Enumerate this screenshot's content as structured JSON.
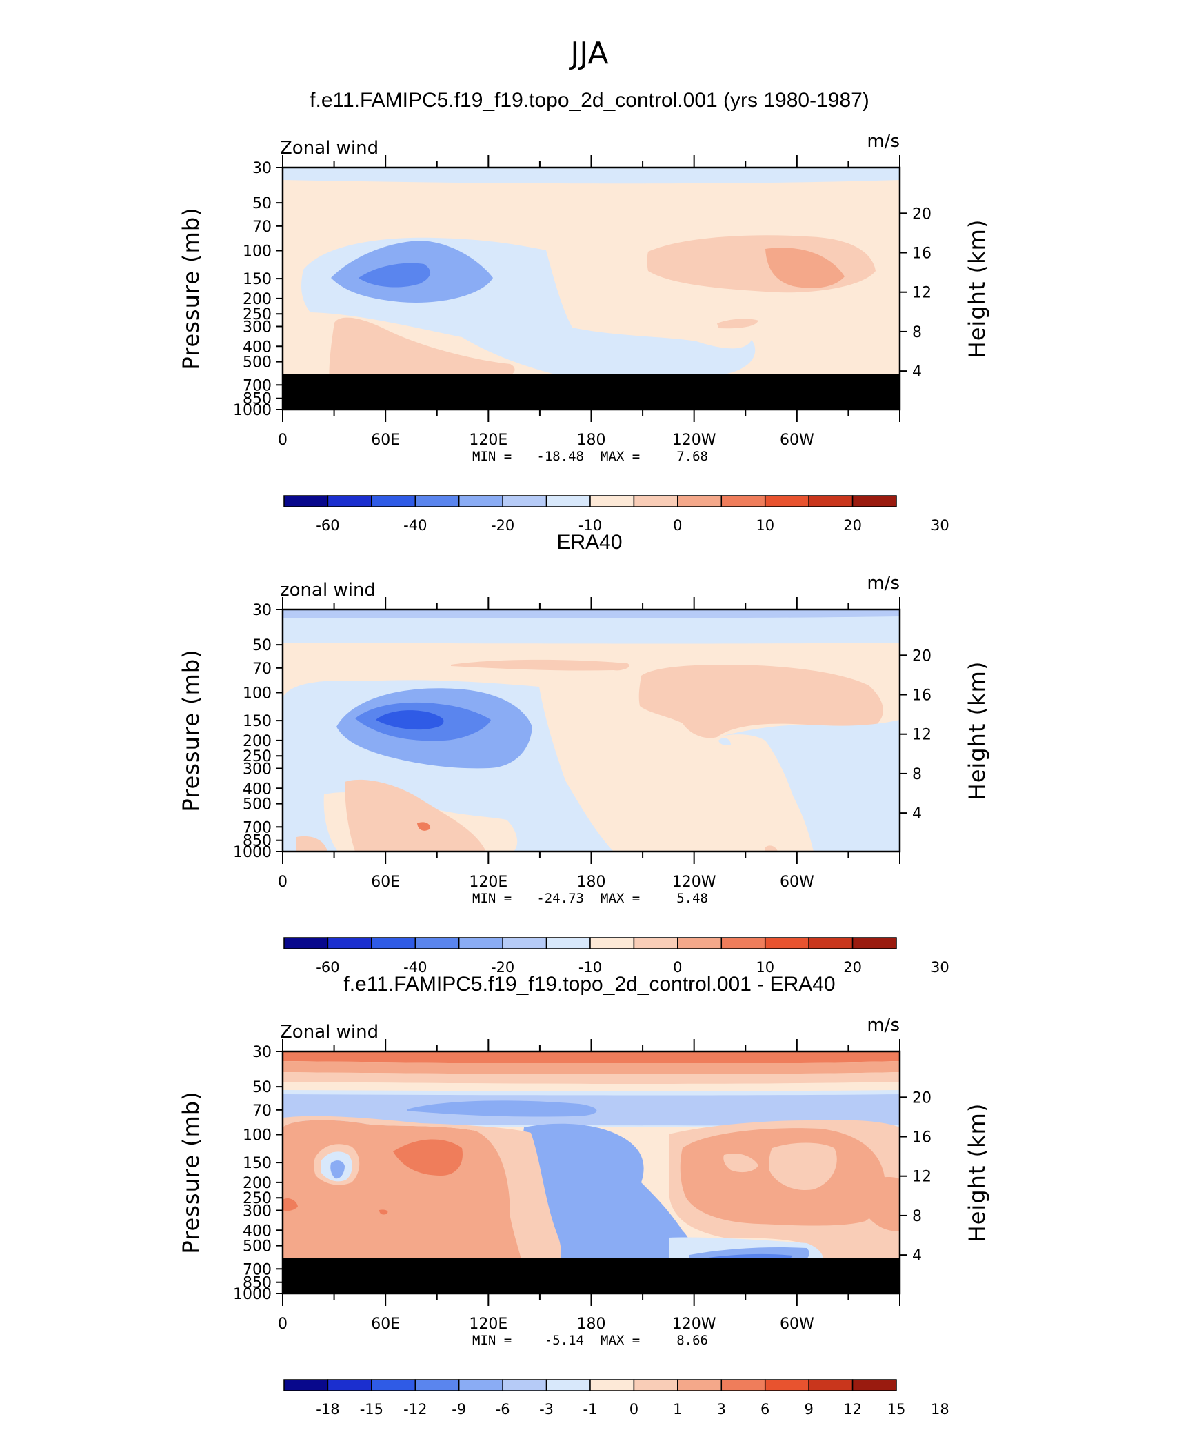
{
  "figure_title": "JJA",
  "colors": {
    "palette": [
      "#08088c",
      "#1b2fcf",
      "#2f5be6",
      "#5a85ee",
      "#8aacf4",
      "#b6cbf7",
      "#d8e8fb",
      "#fde9d7",
      "#f9cdb7",
      "#f4a88a",
      "#ef7d5b",
      "#e8532f",
      "#c9361c",
      "#9a1b0f"
    ],
    "ground": "#000000"
  },
  "chart_data": [
    {
      "type": "contour",
      "title": "f.e11.FAMIPC5.f19_f19.topo_2d_control.001 (yrs 1980-1987)",
      "variable_label": "Zonal wind",
      "units_label": "m/s",
      "ylabel": "Pressure (mb)",
      "ylabel_right": "Height (km)",
      "x_ticks": [
        "0",
        "60E",
        "120E",
        "180",
        "120W",
        "60W"
      ],
      "y_ticks": [
        "30",
        "50",
        "70",
        "100",
        "150",
        "200",
        "250",
        "300",
        "400",
        "500",
        "700",
        "850",
        "1000"
      ],
      "height_ticks": [
        "20",
        "16",
        "12",
        "8",
        "4"
      ],
      "min_max_text": {
        "min_label": "MIN =",
        "min": "-18.48",
        "max_label": "MAX =",
        "max": "7.68"
      },
      "colorbar_labels": [
        "-60",
        "-40",
        "-20",
        "-10",
        "0",
        "10",
        "20",
        "30"
      ],
      "ground_mask_below_mb": 600
    },
    {
      "type": "contour",
      "title": "ERA40",
      "variable_label": "zonal wind",
      "units_label": "m/s",
      "ylabel": "Pressure (mb)",
      "ylabel_right": "Height (km)",
      "x_ticks": [
        "0",
        "60E",
        "120E",
        "180",
        "120W",
        "60W"
      ],
      "y_ticks": [
        "30",
        "50",
        "70",
        "100",
        "150",
        "200",
        "250",
        "300",
        "400",
        "500",
        "700",
        "850",
        "1000"
      ],
      "height_ticks": [
        "20",
        "16",
        "12",
        "8",
        "4"
      ],
      "min_max_text": {
        "min_label": "MIN =",
        "min": "-24.73",
        "max_label": "MAX =",
        "max": "5.48"
      },
      "colorbar_labels": [
        "-60",
        "-40",
        "-20",
        "-10",
        "0",
        "10",
        "20",
        "30"
      ],
      "ground_mask_below_mb": null
    },
    {
      "type": "contour",
      "title": "f.e11.FAMIPC5.f19_f19.topo_2d_control.001 - ERA40",
      "variable_label": "Zonal wind",
      "units_label": "m/s",
      "ylabel": "Pressure (mb)",
      "ylabel_right": "Height (km)",
      "x_ticks": [
        "0",
        "60E",
        "120E",
        "180",
        "120W",
        "60W"
      ],
      "y_ticks": [
        "30",
        "50",
        "70",
        "100",
        "150",
        "200",
        "250",
        "300",
        "400",
        "500",
        "700",
        "850",
        "1000"
      ],
      "height_ticks": [
        "20",
        "16",
        "12",
        "8",
        "4"
      ],
      "min_max_text": {
        "min_label": "MIN =",
        "min": "-5.14",
        "max_label": "MAX =",
        "max": "8.66"
      },
      "colorbar_labels": [
        "-18",
        "-15",
        "-12",
        "-9",
        "-6",
        "-3",
        "-1",
        "0",
        "1",
        "3",
        "6",
        "9",
        "12",
        "15",
        "18"
      ],
      "ground_mask_below_mb": 600
    }
  ]
}
